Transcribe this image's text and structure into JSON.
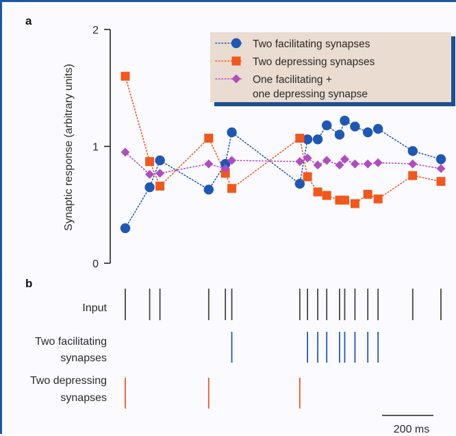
{
  "panel_labels": {
    "a": "a",
    "b": "b"
  },
  "colors": {
    "facilitating": "#1f57b5",
    "depressing": "#f2571c",
    "mixed": "#b04cc0",
    "legend_bg": "#eadcd0",
    "legend_shadow": "#1f4f8e",
    "frame": "#1c58a8",
    "axis": "#222222",
    "input_raster": "#444444"
  },
  "chart_data": [
    {
      "type": "line",
      "panel": "a",
      "ylabel": "Synaptic response (arbitrary units)",
      "ylim": [
        0,
        2
      ],
      "yticks": [
        0,
        1,
        2
      ],
      "ytick_labels": [
        "0",
        "1",
        "2"
      ],
      "x_unit": "ms",
      "legend_position": "top-right",
      "series": [
        {
          "name": "Two facilitating synapses",
          "marker": "circle",
          "points": [
            [
              0,
              0.3
            ],
            [
              95,
              0.65
            ],
            [
              135,
              0.88
            ],
            [
              325,
              0.63
            ],
            [
              390,
              0.85
            ],
            [
              415,
              1.12
            ],
            [
              680,
              0.68
            ],
            [
              710,
              1.06
            ],
            [
              750,
              1.06
            ],
            [
              785,
              1.18
            ],
            [
              835,
              1.1
            ],
            [
              855,
              1.22
            ],
            [
              895,
              1.17
            ],
            [
              945,
              1.12
            ],
            [
              985,
              1.15
            ],
            [
              1120,
              0.96
            ],
            [
              1230,
              0.89
            ]
          ]
        },
        {
          "name": "Two depressing synapses",
          "marker": "square",
          "points": [
            [
              0,
              1.6
            ],
            [
              95,
              0.87
            ],
            [
              135,
              0.66
            ],
            [
              325,
              1.07
            ],
            [
              390,
              0.77
            ],
            [
              415,
              0.64
            ],
            [
              680,
              1.07
            ],
            [
              710,
              0.74
            ],
            [
              750,
              0.61
            ],
            [
              785,
              0.58
            ],
            [
              835,
              0.54
            ],
            [
              855,
              0.54
            ],
            [
              895,
              0.51
            ],
            [
              945,
              0.59
            ],
            [
              985,
              0.55
            ],
            [
              1120,
              0.75
            ],
            [
              1230,
              0.7
            ]
          ]
        },
        {
          "name": "One facilitating + one depressing synapse",
          "name_lines": [
            "One facilitating +",
            "one depressing synapse"
          ],
          "marker": "diamond",
          "points": [
            [
              0,
              0.95
            ],
            [
              95,
              0.76
            ],
            [
              135,
              0.77
            ],
            [
              325,
              0.85
            ],
            [
              390,
              0.81
            ],
            [
              415,
              0.88
            ],
            [
              680,
              0.87
            ],
            [
              710,
              0.9
            ],
            [
              750,
              0.84
            ],
            [
              785,
              0.88
            ],
            [
              835,
              0.84
            ],
            [
              855,
              0.89
            ],
            [
              895,
              0.85
            ],
            [
              945,
              0.85
            ],
            [
              985,
              0.86
            ],
            [
              1120,
              0.85
            ],
            [
              1230,
              0.81
            ]
          ]
        }
      ]
    },
    {
      "type": "raster",
      "panel": "b",
      "scale_bar": {
        "length": 200,
        "label": "200 ms"
      },
      "rows": [
        {
          "label_lines": [
            "Input"
          ],
          "color_key": "input_raster",
          "spikes": [
            0,
            95,
            135,
            325,
            390,
            415,
            680,
            710,
            750,
            785,
            835,
            855,
            895,
            945,
            985,
            1120,
            1230
          ]
        },
        {
          "label_lines": [
            "Two facilitating",
            "synapses"
          ],
          "color_key": "facilitating",
          "spikes": [
            415,
            710,
            750,
            785,
            835,
            855,
            895,
            945,
            985
          ]
        },
        {
          "label_lines": [
            "Two depressing",
            "synapses"
          ],
          "color_key": "depressing",
          "spikes": [
            0,
            325,
            680
          ]
        }
      ]
    }
  ]
}
